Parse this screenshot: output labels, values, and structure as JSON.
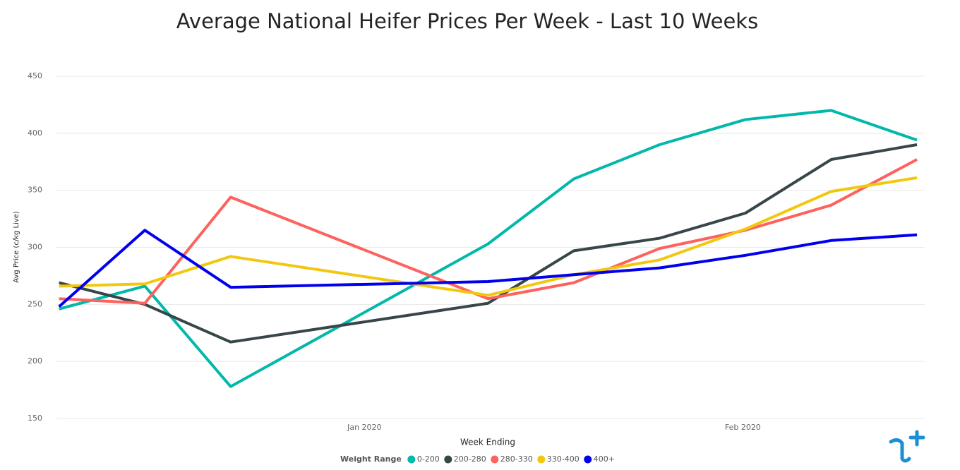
{
  "chart_data": {
    "type": "line",
    "title": "Average National Heifer Prices Per Week - Last 10 Weeks",
    "x_label": "Week Ending",
    "y_label": "Avg Price (c/kg Live)",
    "legend_title": "Weight Range",
    "legend": "bottom",
    "grid": true,
    "x": [
      0,
      1,
      2,
      5,
      6,
      7,
      8,
      9,
      10
    ],
    "xlim": [
      -0.03,
      10.09
    ],
    "xticks": [
      {
        "value": 3.56,
        "label": "Jan 2020"
      },
      {
        "value": 7.97,
        "label": "Feb 2020"
      }
    ],
    "ylim": [
      150,
      450
    ],
    "yticks": [
      150,
      200,
      250,
      300,
      350,
      400,
      450
    ],
    "series": [
      {
        "name": "0-200",
        "color": "#01b8aa",
        "values": [
          246,
          266,
          178,
          303,
          360,
          390,
          412,
          420,
          394
        ]
      },
      {
        "name": "200-280",
        "color": "#374649",
        "values": [
          269,
          250,
          217,
          251,
          297,
          308,
          330,
          377,
          390
        ]
      },
      {
        "name": "280-330",
        "color": "#fd625e",
        "values": [
          255,
          251,
          344,
          255,
          269,
          299,
          315,
          337,
          377
        ]
      },
      {
        "name": "330-400",
        "color": "#f2c80f",
        "values": [
          266,
          268,
          292,
          258,
          276,
          289,
          316,
          349,
          361
        ]
      },
      {
        "name": "400+",
        "color": "#0000ee",
        "values": [
          248,
          315,
          265,
          270,
          276,
          282,
          293,
          306,
          311
        ]
      }
    ]
  }
}
